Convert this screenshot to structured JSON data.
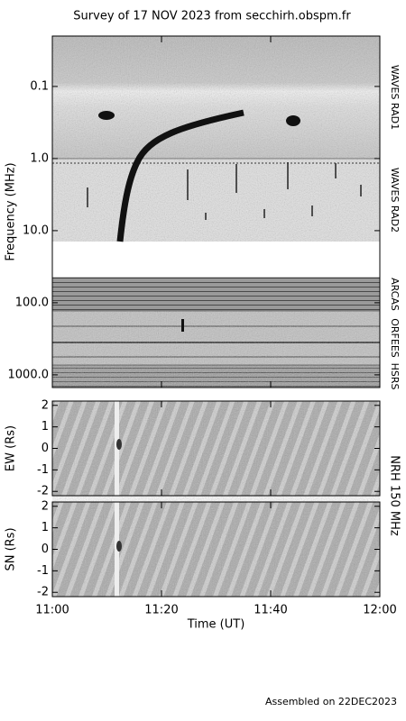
{
  "title": "Survey of 17 NOV 2023 from secchirh.obspm.fr",
  "footer": "Assembled on 22DEC2023",
  "instrument": "NRH 150 MHz",
  "chart_data": [
    {
      "type": "spectrogram",
      "ylabel": "Frequency (MHz)",
      "log_y": true,
      "y_inverted": true,
      "ylim": [
        0.02,
        1500
      ],
      "yticks": [
        0.1,
        {
          "value": 1,
          "label": "1.0"
        },
        {
          "value": 10,
          "label": "10.0"
        },
        {
          "value": 100,
          "label": "100.0"
        },
        {
          "value": 1000,
          "label": "1000.0"
        }
      ],
      "instruments": [
        "WAVES RAD1",
        "WAVES RAD2",
        "ARCAS",
        "ORFEES",
        "HSRS"
      ],
      "xlim": [
        "11:00",
        "12:00"
      ],
      "xticks": [
        "11:00",
        "11:20",
        "11:40",
        "12:00"
      ]
    },
    {
      "type": "spectrogram",
      "ylabel": "EW (Rs)",
      "ylim": [
        -2.2,
        2.2
      ],
      "yticks": [
        -2,
        -1,
        0,
        1,
        2
      ],
      "xlim": [
        "11:00",
        "12:00"
      ],
      "xticks": [
        "11:00",
        "11:20",
        "11:40",
        "12:00"
      ]
    },
    {
      "type": "spectrogram",
      "ylabel": "SN (Rs)",
      "ylim": [
        -2.2,
        2.2
      ],
      "yticks": [
        -2,
        -1,
        0,
        1,
        2
      ],
      "xlabel": "Time (UT)",
      "xlim": [
        "11:00",
        "12:00"
      ],
      "xticks": [
        "11:00",
        "11:20",
        "11:40",
        "12:00"
      ]
    }
  ]
}
